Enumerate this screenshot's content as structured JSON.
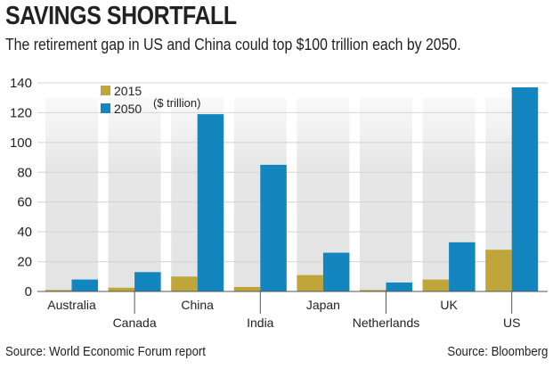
{
  "title": "SAVINGS SHORTFALL",
  "subtitle": "The retirement gap in US and China could top $100 trillion each by 2050.",
  "source_left": "Source: World Economic Forum report",
  "source_right": "Source: Bloomberg",
  "chart_data": {
    "type": "bar",
    "title": "SAVINGS SHORTFALL",
    "unit_label": "($ trillion)",
    "categories": [
      "Australia",
      "Canada",
      "China",
      "India",
      "Japan",
      "Netherlands",
      "UK",
      "US"
    ],
    "series": [
      {
        "name": "2015",
        "color": "#c0a53a",
        "values": [
          1,
          2.5,
          10,
          3,
          11,
          1,
          8,
          28
        ]
      },
      {
        "name": "2050",
        "color": "#1385bf",
        "values": [
          8,
          13,
          119,
          85,
          26,
          6,
          33,
          137
        ]
      }
    ],
    "ylim": [
      0,
      140
    ],
    "yticks": [
      0,
      20,
      40,
      60,
      80,
      100,
      120,
      140
    ],
    "grid": true,
    "legend": "top-left"
  }
}
